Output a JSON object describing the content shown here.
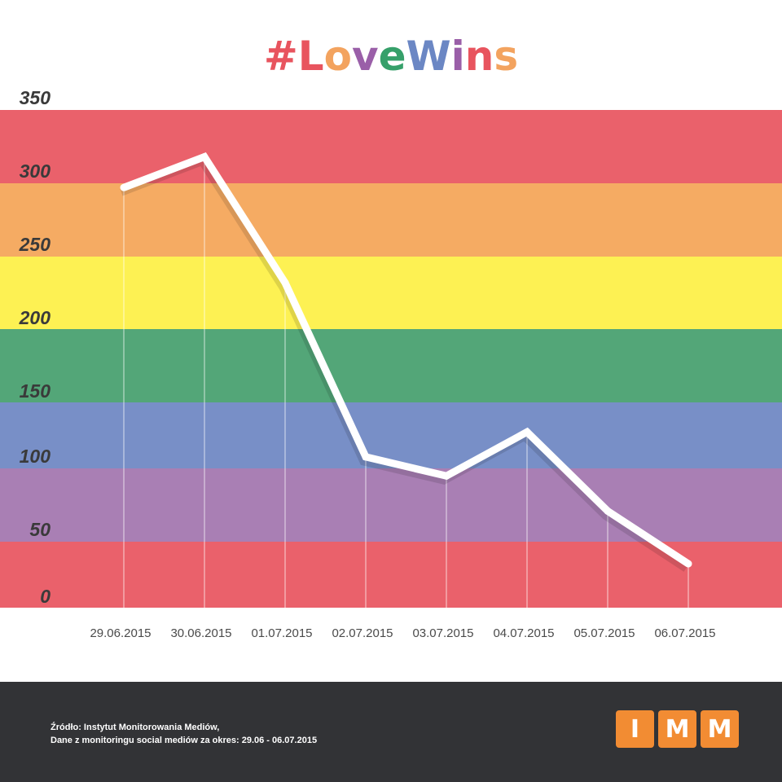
{
  "chart_data": {
    "type": "line",
    "title": "#LoveWins",
    "title_letter_colors": [
      "#e8545e",
      "#e8545e",
      "#f3a35f",
      "#9a5fa8",
      "#36a06a",
      "#6b87c4",
      "#9a5fa8",
      "#e8545e",
      "#f3a35f"
    ],
    "categories": [
      "29.06.2015",
      "30.06.2015",
      "01.07.2015",
      "02.07.2015",
      "03.07.2015",
      "04.07.2015",
      "05.07.2015",
      "06.07.2015"
    ],
    "values": [
      287,
      308,
      222,
      103,
      90,
      120,
      66,
      30
    ],
    "y_ticks": [
      "0",
      "50",
      "100",
      "150",
      "200",
      "250",
      "300",
      "350"
    ],
    "ylim": [
      0,
      340
    ],
    "grid": false,
    "line_color": "#ffffff",
    "background_bands": [
      {
        "color": "#ea616b"
      },
      {
        "color": "#a97fb4"
      },
      {
        "color": "#788fc7"
      },
      {
        "color": "#53a678"
      },
      {
        "color": "#fdf153"
      },
      {
        "color": "#f5ab63"
      },
      {
        "color": "#ea616b"
      }
    ]
  },
  "footer": {
    "source_line1": "Źródło: Instytut Monitorowania Mediów,",
    "source_line2": "Dane z monitoringu social mediów za okres: 29.06 - 06.07.2015",
    "logo_letters": [
      "I",
      "M",
      "M"
    ],
    "logo_color": "#f28c33",
    "background": "#323336"
  }
}
